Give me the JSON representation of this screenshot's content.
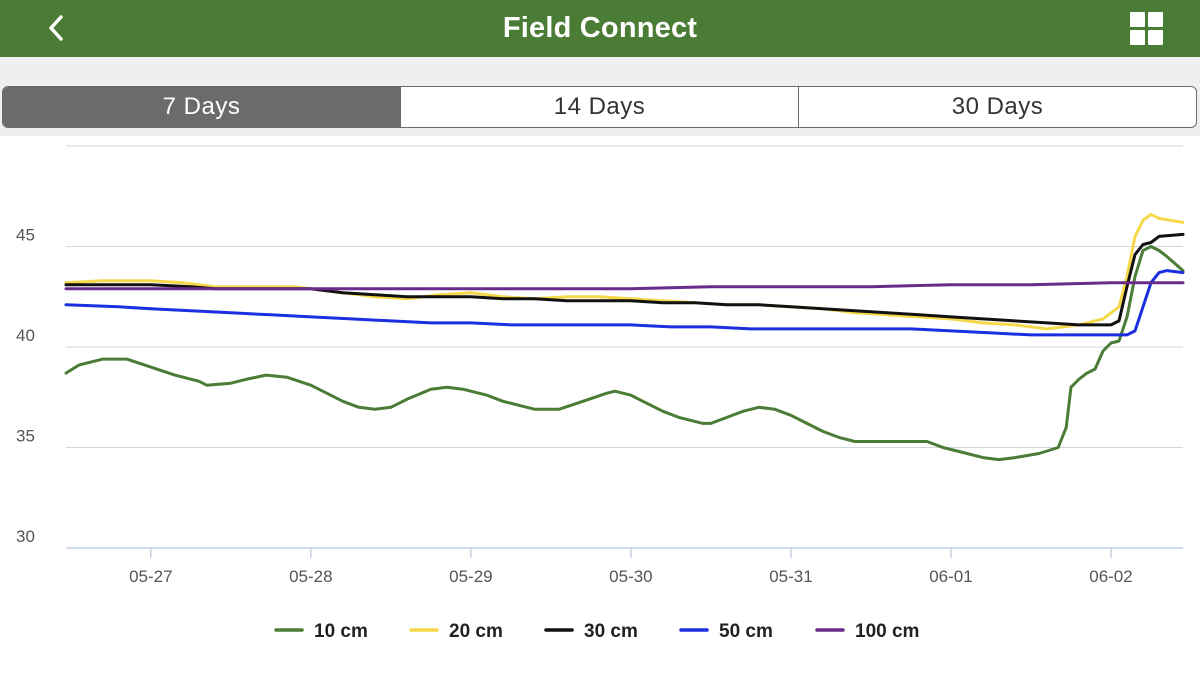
{
  "header": {
    "title": "Field Connect",
    "back_icon": "chevron-left-icon",
    "menu_icon": "grid-icon",
    "bar_color": "#4a7c35"
  },
  "range_tabs": [
    {
      "label": "7 Days",
      "active": true
    },
    {
      "label": "14 Days",
      "active": false
    },
    {
      "label": "30 Days",
      "active": false
    }
  ],
  "chart_data": {
    "type": "line",
    "title": "",
    "xlabel": "",
    "ylabel": "",
    "xlim": [
      -0.53,
      6.45
    ],
    "ylim": [
      30,
      50
    ],
    "y_ticks": [
      30,
      35,
      40,
      45
    ],
    "x_ticks": [
      {
        "label": "05-27",
        "value": 0
      },
      {
        "label": "05-28",
        "value": 1
      },
      {
        "label": "05-29",
        "value": 2
      },
      {
        "label": "05-30",
        "value": 3
      },
      {
        "label": "05-31",
        "value": 4
      },
      {
        "label": "06-01",
        "value": 5
      },
      {
        "label": "06-02",
        "value": 6
      }
    ],
    "legend_position": "bottom-center",
    "series": [
      {
        "name": "10 cm",
        "color": "#4a7c35",
        "points": [
          [
            -0.53,
            38.7
          ],
          [
            -0.45,
            39.1
          ],
          [
            -0.3,
            39.4
          ],
          [
            -0.15,
            39.4
          ],
          [
            0,
            39.0
          ],
          [
            0.15,
            38.6
          ],
          [
            0.3,
            38.3
          ],
          [
            0.35,
            38.1
          ],
          [
            0.5,
            38.2
          ],
          [
            0.6,
            38.4
          ],
          [
            0.72,
            38.6
          ],
          [
            0.85,
            38.5
          ],
          [
            1.0,
            38.1
          ],
          [
            1.1,
            37.7
          ],
          [
            1.2,
            37.3
          ],
          [
            1.3,
            37.0
          ],
          [
            1.4,
            36.9
          ],
          [
            1.5,
            37.0
          ],
          [
            1.6,
            37.4
          ],
          [
            1.75,
            37.9
          ],
          [
            1.85,
            38.0
          ],
          [
            1.95,
            37.9
          ],
          [
            2.1,
            37.6
          ],
          [
            2.2,
            37.3
          ],
          [
            2.3,
            37.1
          ],
          [
            2.4,
            36.9
          ],
          [
            2.55,
            36.9
          ],
          [
            2.7,
            37.3
          ],
          [
            2.85,
            37.7
          ],
          [
            2.9,
            37.8
          ],
          [
            3.0,
            37.6
          ],
          [
            3.1,
            37.2
          ],
          [
            3.2,
            36.8
          ],
          [
            3.3,
            36.5
          ],
          [
            3.45,
            36.2
          ],
          [
            3.5,
            36.2
          ],
          [
            3.6,
            36.5
          ],
          [
            3.7,
            36.8
          ],
          [
            3.8,
            37.0
          ],
          [
            3.9,
            36.9
          ],
          [
            4.0,
            36.6
          ],
          [
            4.1,
            36.2
          ],
          [
            4.2,
            35.8
          ],
          [
            4.3,
            35.5
          ],
          [
            4.4,
            35.3
          ],
          [
            4.55,
            35.3
          ],
          [
            4.7,
            35.3
          ],
          [
            4.85,
            35.3
          ],
          [
            4.95,
            35.0
          ],
          [
            5.1,
            34.7
          ],
          [
            5.2,
            34.5
          ],
          [
            5.3,
            34.4
          ],
          [
            5.4,
            34.5
          ],
          [
            5.55,
            34.7
          ],
          [
            5.67,
            35.0
          ],
          [
            5.72,
            36.0
          ],
          [
            5.75,
            38.0
          ],
          [
            5.8,
            38.4
          ],
          [
            5.85,
            38.7
          ],
          [
            5.9,
            38.9
          ],
          [
            5.95,
            39.8
          ],
          [
            6.0,
            40.2
          ],
          [
            6.05,
            40.3
          ],
          [
            6.1,
            41.5
          ],
          [
            6.15,
            43.5
          ],
          [
            6.2,
            44.8
          ],
          [
            6.25,
            45.0
          ],
          [
            6.3,
            44.8
          ],
          [
            6.35,
            44.5
          ],
          [
            6.45,
            43.8
          ]
        ]
      },
      {
        "name": "20 cm",
        "color": "#f5d94a",
        "points": [
          [
            -0.53,
            43.2
          ],
          [
            -0.3,
            43.3
          ],
          [
            0,
            43.3
          ],
          [
            0.2,
            43.2
          ],
          [
            0.4,
            43.0
          ],
          [
            0.7,
            43.0
          ],
          [
            0.9,
            43.0
          ],
          [
            1.0,
            42.9
          ],
          [
            1.2,
            42.7
          ],
          [
            1.4,
            42.5
          ],
          [
            1.6,
            42.4
          ],
          [
            1.8,
            42.6
          ],
          [
            2.0,
            42.7
          ],
          [
            2.2,
            42.5
          ],
          [
            2.4,
            42.4
          ],
          [
            2.6,
            42.5
          ],
          [
            2.8,
            42.5
          ],
          [
            3.0,
            42.4
          ],
          [
            3.2,
            42.3
          ],
          [
            3.4,
            42.2
          ],
          [
            3.6,
            42.1
          ],
          [
            3.8,
            42.1
          ],
          [
            4.0,
            42.0
          ],
          [
            4.2,
            41.9
          ],
          [
            4.4,
            41.7
          ],
          [
            4.6,
            41.6
          ],
          [
            4.8,
            41.5
          ],
          [
            5.0,
            41.4
          ],
          [
            5.2,
            41.2
          ],
          [
            5.4,
            41.1
          ],
          [
            5.6,
            40.9
          ],
          [
            5.8,
            41.1
          ],
          [
            5.95,
            41.4
          ],
          [
            6.05,
            42.0
          ],
          [
            6.1,
            43.5
          ],
          [
            6.15,
            45.5
          ],
          [
            6.2,
            46.3
          ],
          [
            6.25,
            46.6
          ],
          [
            6.3,
            46.4
          ],
          [
            6.45,
            46.2
          ]
        ]
      },
      {
        "name": "30 cm",
        "color": "#111111",
        "points": [
          [
            -0.53,
            43.1
          ],
          [
            -0.2,
            43.1
          ],
          [
            0,
            43.1
          ],
          [
            0.25,
            43.0
          ],
          [
            0.4,
            42.9
          ],
          [
            0.7,
            42.9
          ],
          [
            1.0,
            42.9
          ],
          [
            1.2,
            42.7
          ],
          [
            1.4,
            42.6
          ],
          [
            1.6,
            42.5
          ],
          [
            1.8,
            42.5
          ],
          [
            2.0,
            42.5
          ],
          [
            2.2,
            42.4
          ],
          [
            2.4,
            42.4
          ],
          [
            2.6,
            42.3
          ],
          [
            2.8,
            42.3
          ],
          [
            3.0,
            42.3
          ],
          [
            3.2,
            42.2
          ],
          [
            3.4,
            42.2
          ],
          [
            3.6,
            42.1
          ],
          [
            3.8,
            42.1
          ],
          [
            4.0,
            42.0
          ],
          [
            4.2,
            41.9
          ],
          [
            4.4,
            41.8
          ],
          [
            4.6,
            41.7
          ],
          [
            4.8,
            41.6
          ],
          [
            5.0,
            41.5
          ],
          [
            5.2,
            41.4
          ],
          [
            5.4,
            41.3
          ],
          [
            5.6,
            41.2
          ],
          [
            5.8,
            41.1
          ],
          [
            6.0,
            41.1
          ],
          [
            6.05,
            41.3
          ],
          [
            6.1,
            43.0
          ],
          [
            6.15,
            44.6
          ],
          [
            6.2,
            45.1
          ],
          [
            6.25,
            45.2
          ],
          [
            6.3,
            45.5
          ],
          [
            6.45,
            45.6
          ]
        ]
      },
      {
        "name": "50 cm",
        "color": "#1a2fe0",
        "points": [
          [
            -0.53,
            42.1
          ],
          [
            -0.2,
            42.0
          ],
          [
            0,
            41.9
          ],
          [
            0.25,
            41.8
          ],
          [
            0.5,
            41.7
          ],
          [
            0.75,
            41.6
          ],
          [
            1.0,
            41.5
          ],
          [
            1.25,
            41.4
          ],
          [
            1.5,
            41.3
          ],
          [
            1.75,
            41.2
          ],
          [
            2.0,
            41.2
          ],
          [
            2.25,
            41.1
          ],
          [
            2.5,
            41.1
          ],
          [
            2.75,
            41.1
          ],
          [
            3.0,
            41.1
          ],
          [
            3.25,
            41.0
          ],
          [
            3.5,
            41.0
          ],
          [
            3.75,
            40.9
          ],
          [
            4.0,
            40.9
          ],
          [
            4.25,
            40.9
          ],
          [
            4.5,
            40.9
          ],
          [
            4.75,
            40.9
          ],
          [
            5.0,
            40.8
          ],
          [
            5.25,
            40.7
          ],
          [
            5.5,
            40.6
          ],
          [
            5.75,
            40.6
          ],
          [
            6.0,
            40.6
          ],
          [
            6.1,
            40.6
          ],
          [
            6.15,
            40.8
          ],
          [
            6.2,
            42.0
          ],
          [
            6.25,
            43.2
          ],
          [
            6.3,
            43.7
          ],
          [
            6.35,
            43.8
          ],
          [
            6.45,
            43.7
          ]
        ]
      },
      {
        "name": "100 cm",
        "color": "#6a2c8c",
        "points": [
          [
            -0.53,
            42.9
          ],
          [
            0,
            42.9
          ],
          [
            0.5,
            42.9
          ],
          [
            1.0,
            42.9
          ],
          [
            1.5,
            42.9
          ],
          [
            2.0,
            42.9
          ],
          [
            2.5,
            42.9
          ],
          [
            3.0,
            42.9
          ],
          [
            3.5,
            43.0
          ],
          [
            4.0,
            43.0
          ],
          [
            4.5,
            43.0
          ],
          [
            5.0,
            43.1
          ],
          [
            5.5,
            43.1
          ],
          [
            6.0,
            43.2
          ],
          [
            6.45,
            43.2
          ]
        ]
      }
    ]
  }
}
